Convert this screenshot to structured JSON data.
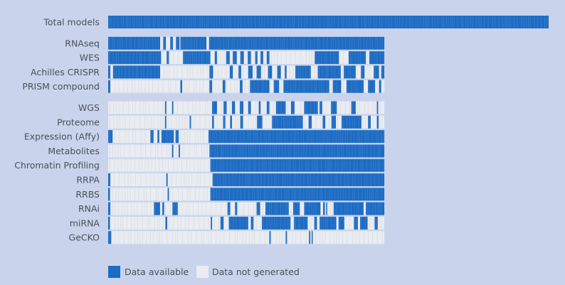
{
  "colors": {
    "background": "#c9d4ec",
    "available": "#1e6cc2",
    "available_light": "#3f86d3",
    "not_generated": "#e9ecf1",
    "not_generated_line": "#dadee5"
  },
  "legend": {
    "available": "Data available",
    "not_generated": "Data not generated"
  },
  "chart_data": {
    "type": "heatmap",
    "title": "",
    "xlabel": "",
    "ylabel": "",
    "groups": [
      {
        "rows": [
          {
            "label": "Total models",
            "extent": 1.0,
            "segments": [
              [
                0.0,
                1.0
              ]
            ]
          }
        ]
      },
      {
        "rows": [
          {
            "label": "RNAseq",
            "extent": 0.627,
            "segments": [
              [
                0.0,
                0.118
              ],
              [
                0.125,
                0.131
              ],
              [
                0.141,
                0.147
              ],
              [
                0.154,
                0.162
              ],
              [
                0.164,
                0.223
              ],
              [
                0.229,
                0.627
              ]
            ]
          },
          {
            "label": "WES",
            "extent": 0.627,
            "segments": [
              [
                0.0,
                0.12
              ],
              [
                0.133,
                0.138
              ],
              [
                0.17,
                0.232
              ],
              [
                0.242,
                0.247
              ],
              [
                0.268,
                0.276
              ],
              [
                0.283,
                0.292
              ],
              [
                0.3,
                0.308
              ],
              [
                0.317,
                0.324
              ],
              [
                0.334,
                0.339
              ],
              [
                0.346,
                0.352
              ],
              [
                0.36,
                0.366
              ],
              [
                0.469,
                0.524
              ],
              [
                0.546,
                0.585
              ],
              [
                0.593,
                0.627
              ]
            ]
          },
          {
            "label": "Achilles CRISPR",
            "extent": 0.627,
            "segments": [
              [
                0.0,
                0.005
              ],
              [
                0.011,
                0.118
              ],
              [
                0.23,
                0.238
              ],
              [
                0.276,
                0.283
              ],
              [
                0.296,
                0.302
              ],
              [
                0.318,
                0.328
              ],
              [
                0.337,
                0.347
              ],
              [
                0.363,
                0.372
              ],
              [
                0.384,
                0.392
              ],
              [
                0.401,
                0.405
              ],
              [
                0.425,
                0.46
              ],
              [
                0.476,
                0.528
              ],
              [
                0.535,
                0.562
              ],
              [
                0.574,
                0.582
              ],
              [
                0.603,
                0.615
              ],
              [
                0.62,
                0.627
              ]
            ]
          },
          {
            "label": "PRISM compound",
            "extent": 0.627,
            "segments": [
              [
                0.0,
                0.005
              ],
              [
                0.164,
                0.168
              ],
              [
                0.23,
                0.236
              ],
              [
                0.26,
                0.266
              ],
              [
                0.299,
                0.305
              ],
              [
                0.322,
                0.366
              ],
              [
                0.376,
                0.388
              ],
              [
                0.398,
                0.502
              ],
              [
                0.51,
                0.529
              ],
              [
                0.541,
                0.58
              ],
              [
                0.59,
                0.606
              ],
              [
                0.615,
                0.62
              ]
            ]
          }
        ]
      },
      {
        "rows": [
          {
            "label": "WGS",
            "extent": 0.627,
            "segments": [
              [
                0.129,
                0.132
              ],
              [
                0.145,
                0.148
              ],
              [
                0.236,
                0.247
              ],
              [
                0.262,
                0.269
              ],
              [
                0.281,
                0.288
              ],
              [
                0.299,
                0.307
              ],
              [
                0.318,
                0.324
              ],
              [
                0.342,
                0.346
              ],
              [
                0.36,
                0.366
              ],
              [
                0.381,
                0.403
              ],
              [
                0.415,
                0.423
              ],
              [
                0.445,
                0.476
              ],
              [
                0.48,
                0.486
              ],
              [
                0.506,
                0.519
              ],
              [
                0.552,
                0.562
              ],
              [
                0.61,
                0.613
              ]
            ]
          },
          {
            "label": "Proteome",
            "extent": 0.627,
            "segments": [
              [
                0.129,
                0.132
              ],
              [
                0.185,
                0.188
              ],
              [
                0.236,
                0.24
              ],
              [
                0.261,
                0.266
              ],
              [
                0.277,
                0.281
              ],
              [
                0.3,
                0.306
              ],
              [
                0.338,
                0.35
              ],
              [
                0.372,
                0.442
              ],
              [
                0.455,
                0.462
              ],
              [
                0.487,
                0.493
              ],
              [
                0.507,
                0.517
              ],
              [
                0.53,
                0.575
              ],
              [
                0.59,
                0.596
              ],
              [
                0.61,
                0.614
              ]
            ]
          },
          {
            "label": "Expression (Affy)",
            "extent": 0.627,
            "segments": [
              [
                0.0,
                0.01
              ],
              [
                0.096,
                0.103
              ],
              [
                0.112,
                0.116
              ],
              [
                0.121,
                0.149
              ],
              [
                0.153,
                0.16
              ],
              [
                0.228,
                0.627
              ]
            ]
          },
          {
            "label": "Metabolites",
            "extent": 0.627,
            "segments": [
              [
                0.145,
                0.148
              ],
              [
                0.16,
                0.163
              ],
              [
                0.23,
                0.627
              ]
            ]
          },
          {
            "label": "Chromatin Profiling",
            "extent": 0.627,
            "segments": [
              [
                0.232,
                0.627
              ]
            ]
          },
          {
            "label": "RRPA",
            "extent": 0.627,
            "segments": [
              [
                0.0,
                0.005
              ],
              [
                0.132,
                0.135
              ],
              [
                0.237,
                0.627
              ]
            ]
          },
          {
            "label": "RRBS",
            "extent": 0.627,
            "segments": [
              [
                0.0,
                0.004
              ],
              [
                0.135,
                0.138
              ],
              [
                0.232,
                0.627
              ]
            ]
          },
          {
            "label": "RNAi",
            "extent": 0.627,
            "segments": [
              [
                0.0,
                0.005
              ],
              [
                0.104,
                0.118
              ],
              [
                0.123,
                0.127
              ],
              [
                0.146,
                0.158
              ],
              [
                0.271,
                0.277
              ],
              [
                0.288,
                0.293
              ],
              [
                0.337,
                0.345
              ],
              [
                0.357,
                0.41
              ],
              [
                0.42,
                0.435
              ],
              [
                0.445,
                0.482
              ],
              [
                0.488,
                0.492
              ],
              [
                0.495,
                0.497
              ],
              [
                0.512,
                0.58
              ],
              [
                0.585,
                0.627
              ]
            ]
          },
          {
            "label": "miRNA",
            "extent": 0.627,
            "segments": [
              [
                0.0,
                0.004
              ],
              [
                0.13,
                0.134
              ],
              [
                0.233,
                0.236
              ],
              [
                0.255,
                0.262
              ],
              [
                0.274,
                0.318
              ],
              [
                0.324,
                0.33
              ],
              [
                0.349,
                0.414
              ],
              [
                0.422,
                0.453
              ],
              [
                0.468,
                0.474
              ],
              [
                0.48,
                0.518
              ],
              [
                0.523,
                0.536
              ],
              [
                0.558,
                0.567
              ],
              [
                0.572,
                0.589
              ],
              [
                0.605,
                0.612
              ]
            ]
          },
          {
            "label": "GeCKO",
            "extent": 0.627,
            "segments": [
              [
                0.0,
                0.007
              ],
              [
                0.366,
                0.369
              ],
              [
                0.403,
                0.406
              ],
              [
                0.456,
                0.459
              ],
              [
                0.462,
                0.464
              ]
            ]
          }
        ]
      }
    ]
  }
}
